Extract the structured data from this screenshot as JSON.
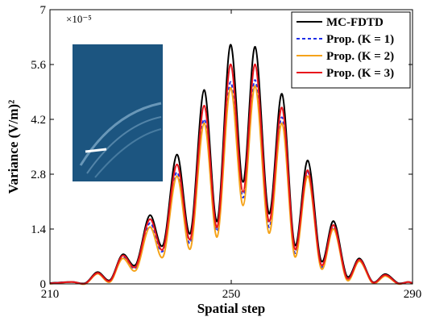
{
  "chart_data": {
    "type": "line",
    "xlabel": "Spatial step",
    "ylabel": "Variance (V/m)²",
    "y_multiplier": "×10⁻⁵",
    "x": [
      210,
      214.8,
      217.8,
      220.5,
      223.3,
      226,
      229,
      232,
      235,
      238,
      241,
      244,
      246.9,
      249.8,
      252.6,
      255.3,
      258.3,
      261.2,
      264,
      266.9,
      269.8,
      272.6,
      275.5,
      278.3,
      281.2,
      284,
      286.8,
      289,
      290
    ],
    "series": [
      {
        "name": "MC-FDTD",
        "color": "#000000",
        "dash": false,
        "values": [
          0.02,
          0.05,
          0.02,
          0.3,
          0.1,
          0.75,
          0.5,
          1.75,
          1.0,
          3.3,
          1.3,
          4.95,
          1.6,
          6.1,
          2.6,
          6.05,
          1.8,
          4.85,
          1.0,
          3.15,
          0.6,
          1.6,
          0.2,
          0.65,
          0.05,
          0.25,
          0.02,
          0.05,
          0.02
        ]
      },
      {
        "name": "Prop. (K = 1)",
        "color": "#1f2ee8",
        "dash": true,
        "values": [
          0.01,
          0.05,
          0.01,
          0.27,
          0.07,
          0.68,
          0.42,
          1.55,
          0.85,
          2.85,
          1.05,
          4.2,
          1.35,
          5.15,
          2.2,
          5.2,
          1.45,
          4.25,
          0.8,
          2.85,
          0.45,
          1.45,
          0.12,
          0.6,
          0.03,
          0.22,
          0.01,
          0.05,
          0.01
        ]
      },
      {
        "name": "Prop. (K = 2)",
        "color": "#f5a31a",
        "dash": false,
        "values": [
          0.0,
          0.05,
          0.0,
          0.26,
          0.05,
          0.65,
          0.35,
          1.45,
          0.7,
          2.75,
          0.9,
          4.1,
          1.2,
          5.0,
          2.0,
          5.05,
          1.3,
          4.1,
          0.7,
          2.75,
          0.4,
          1.4,
          0.1,
          0.58,
          0.02,
          0.2,
          0.0,
          0.05,
          0.0
        ]
      },
      {
        "name": "Prop. (K = 3)",
        "color": "#e8141c",
        "dash": false,
        "values": [
          0.01,
          0.05,
          0.01,
          0.28,
          0.08,
          0.72,
          0.45,
          1.65,
          0.9,
          3.05,
          1.15,
          4.55,
          1.45,
          5.6,
          2.35,
          5.6,
          1.6,
          4.5,
          0.9,
          2.9,
          0.5,
          1.5,
          0.15,
          0.62,
          0.04,
          0.23,
          0.01,
          0.05,
          0.01
        ]
      }
    ],
    "xlim": [
      210,
      290
    ],
    "ylim": [
      0,
      7
    ],
    "xticks": [
      210,
      250,
      290
    ],
    "yticks": [
      0,
      1.4,
      2.8,
      4.2,
      5.6,
      7
    ],
    "legend": "upper-right"
  }
}
